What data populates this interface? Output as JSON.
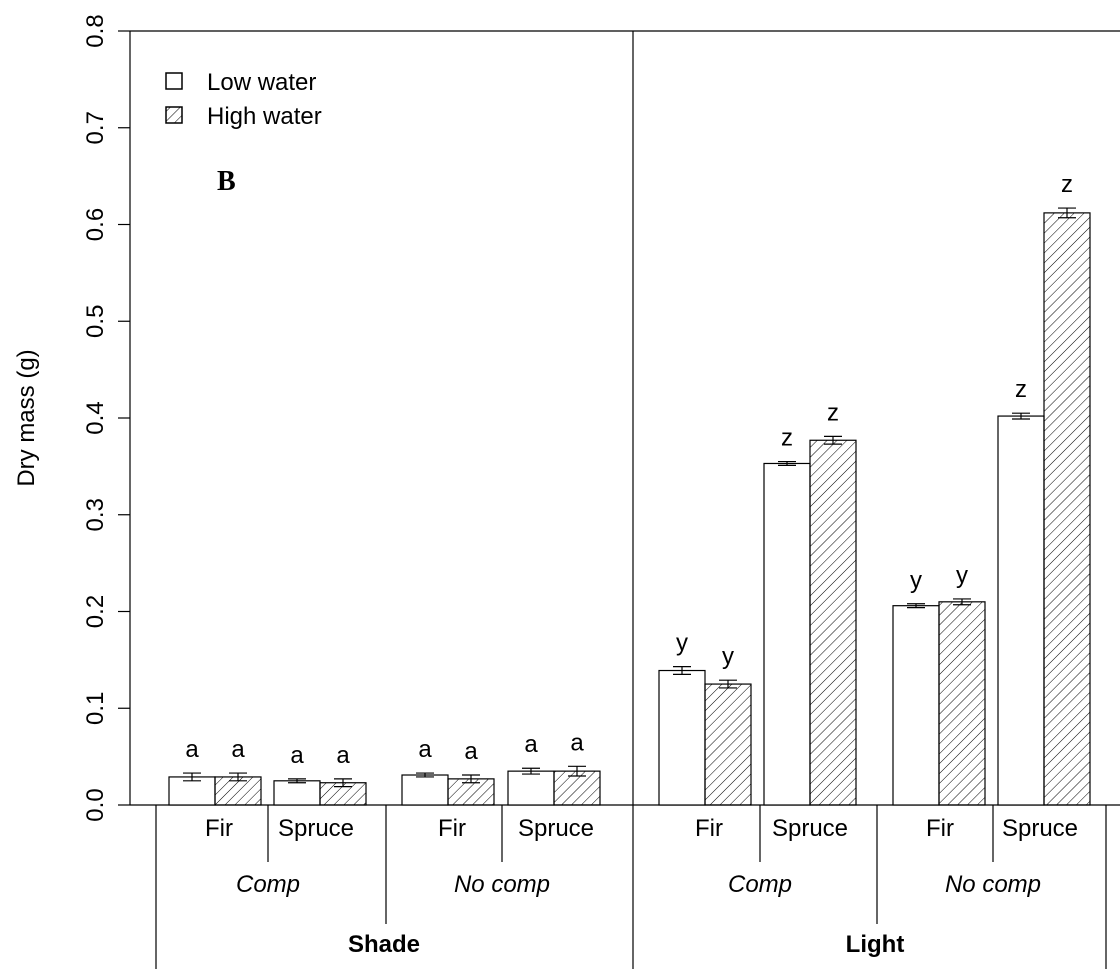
{
  "chart_data": {
    "type": "bar",
    "panel_label": "B",
    "ylabel": "Dry mass (g)",
    "ylim": [
      0,
      0.8
    ],
    "yticks": [
      "0.0",
      "0.1",
      "0.2",
      "0.3",
      "0.4",
      "0.5",
      "0.6",
      "0.7",
      "0.8"
    ],
    "grid": false,
    "legend": {
      "position": "top-left",
      "entries": [
        {
          "label": "Low water",
          "pattern": "open"
        },
        {
          "label": "High water",
          "pattern": "hatched"
        }
      ]
    },
    "series": [
      {
        "name": "Low water",
        "pattern": "open"
      },
      {
        "name": "High water",
        "pattern": "hatched"
      }
    ],
    "groups": [
      {
        "light": "Shade",
        "competition": "Comp",
        "species": "Fir",
        "values": [
          0.029,
          0.029
        ],
        "errors": [
          0.004,
          0.004
        ],
        "letters": [
          "a",
          "a"
        ]
      },
      {
        "light": "Shade",
        "competition": "Comp",
        "species": "Spruce",
        "values": [
          0.025,
          0.023
        ],
        "errors": [
          0.002,
          0.004
        ],
        "letters": [
          "a",
          "a"
        ]
      },
      {
        "light": "Shade",
        "competition": "No comp",
        "species": "Fir",
        "values": [
          0.031,
          0.027
        ],
        "errors": [
          0.002,
          0.004
        ],
        "letters": [
          "a",
          "a"
        ]
      },
      {
        "light": "Shade",
        "competition": "No comp",
        "species": "Spruce",
        "values": [
          0.035,
          0.035
        ],
        "errors": [
          0.003,
          0.005
        ],
        "letters": [
          "a",
          "a"
        ]
      },
      {
        "light": "Light",
        "competition": "Comp",
        "species": "Fir",
        "values": [
          0.139,
          0.125
        ],
        "errors": [
          0.004,
          0.004
        ],
        "letters": [
          "y",
          "y"
        ]
      },
      {
        "light": "Light",
        "competition": "Comp",
        "species": "Spruce",
        "values": [
          0.353,
          0.377
        ],
        "errors": [
          0.002,
          0.004
        ],
        "letters": [
          "z",
          "z"
        ]
      },
      {
        "light": "Light",
        "competition": "No comp",
        "species": "Fir",
        "values": [
          0.206,
          0.21
        ],
        "errors": [
          0.002,
          0.003
        ],
        "letters": [
          "y",
          "y"
        ]
      },
      {
        "light": "Light",
        "competition": "No comp",
        "species": "Spruce",
        "values": [
          0.402,
          0.612
        ],
        "errors": [
          0.003,
          0.005
        ],
        "letters": [
          "z",
          "z"
        ]
      }
    ],
    "x_levels": {
      "species": [
        "Fir",
        "Spruce",
        "Fir",
        "Spruce",
        "Fir",
        "Spruce",
        "Fir",
        "Spruce"
      ],
      "competition": [
        "Comp",
        "No comp",
        "Comp",
        "No comp"
      ],
      "light": [
        "Shade",
        "Light"
      ]
    }
  }
}
